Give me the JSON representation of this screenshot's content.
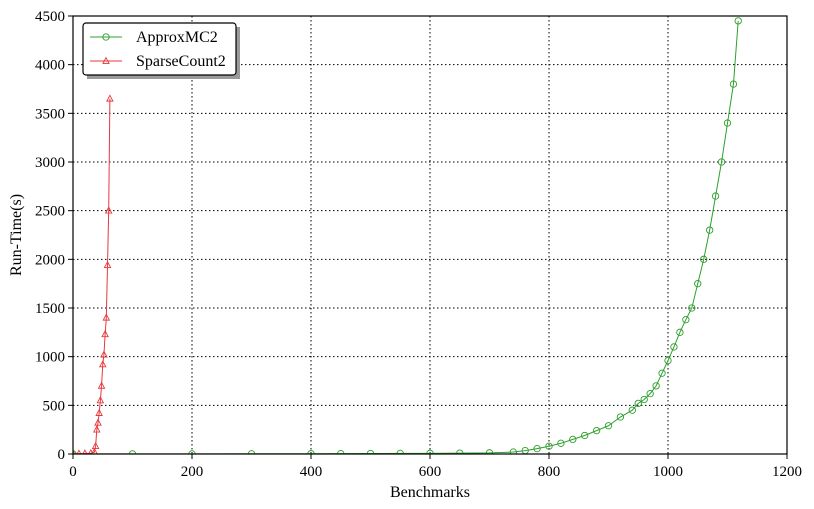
{
  "chart_data": {
    "type": "line",
    "xlabel": "Benchmarks",
    "ylabel": "Run-Time(s)",
    "xlim": [
      0,
      1200
    ],
    "ylim": [
      0,
      4500
    ],
    "xticks": [
      "0",
      "200",
      "400",
      "600",
      "800",
      "1000",
      "1200"
    ],
    "yticks": [
      "0",
      "500",
      "1000",
      "1500",
      "2000",
      "2500",
      "3000",
      "3500",
      "4000",
      "4500"
    ],
    "grid": true,
    "legend_position": "top-left",
    "series": [
      {
        "name": "ApproxMC2",
        "color": "#2ca02c",
        "marker": "circle",
        "x": [
          0,
          100,
          200,
          300,
          400,
          450,
          500,
          550,
          600,
          650,
          700,
          740,
          760,
          780,
          800,
          820,
          840,
          860,
          880,
          900,
          920,
          940,
          950,
          960,
          970,
          980,
          990,
          1000,
          1010,
          1020,
          1030,
          1040,
          1050,
          1060,
          1070,
          1080,
          1090,
          1100,
          1110,
          1118
        ],
        "y": [
          1,
          1,
          1,
          2,
          3,
          4,
          5,
          6,
          7,
          9,
          12,
          20,
          35,
          55,
          80,
          110,
          150,
          190,
          240,
          290,
          380,
          450,
          520,
          560,
          620,
          700,
          830,
          960,
          1100,
          1250,
          1380,
          1500,
          1750,
          2000,
          2300,
          2650,
          3000,
          3400,
          3800,
          4450
        ]
      },
      {
        "name": "SparseCount2",
        "color": "#e8383b",
        "marker": "triangle",
        "x": [
          0,
          10,
          20,
          30,
          36,
          38,
          40,
          42,
          44,
          46,
          48,
          50,
          52,
          54,
          56,
          58,
          60,
          62
        ],
        "y": [
          2,
          3,
          5,
          8,
          20,
          80,
          250,
          320,
          420,
          550,
          700,
          920,
          1020,
          1230,
          1400,
          1940,
          2500,
          3650
        ]
      }
    ]
  }
}
